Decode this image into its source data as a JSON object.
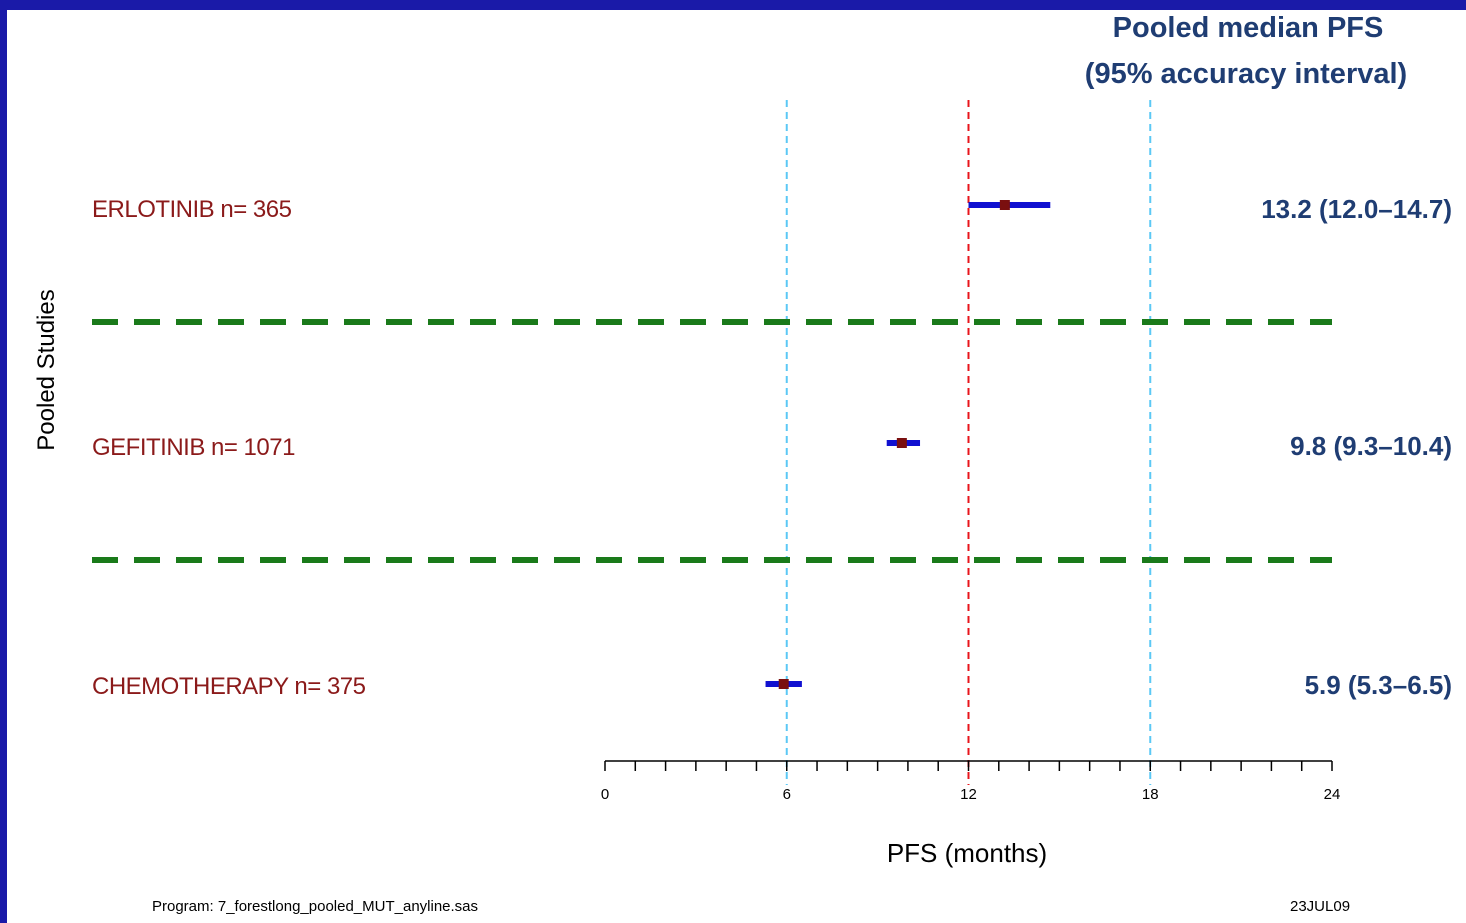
{
  "header": {
    "line1": "Pooled median PFS",
    "line2": "(95% accuracy interval)"
  },
  "chart_data": {
    "type": "forest",
    "ylabel": "Pooled Studies",
    "xlabel": "PFS (months)",
    "xlim": [
      0,
      24
    ],
    "xticks": [
      0,
      6,
      12,
      18,
      24
    ],
    "reference_lines": [
      {
        "x": 6,
        "style": "dashed",
        "color": "#5bc8f5"
      },
      {
        "x": 12,
        "style": "dashed",
        "color": "#e8141b"
      },
      {
        "x": 18,
        "style": "dashed",
        "color": "#5bc8f5"
      }
    ],
    "studies": [
      {
        "label": "ERLOTINIB n= 365",
        "median": 13.2,
        "lower": 12.0,
        "upper": 14.7,
        "ci_text": "13.2 (12.0–14.7)"
      },
      {
        "label": "GEFITINIB n= 1071",
        "median": 9.8,
        "lower": 9.3,
        "upper": 10.4,
        "ci_text": "9.8 (9.3–10.4)"
      },
      {
        "label": "CHEMOTHERAPY n= 375",
        "median": 5.9,
        "lower": 5.3,
        "upper": 6.5,
        "ci_text": "5.9 (5.3–6.5)"
      }
    ],
    "colors": {
      "ci_line": "#1010d0",
      "point": "#7a0f0f",
      "separator": "#1a7a1a",
      "label": "#8b1a1a",
      "ci_text": "#1f3d73"
    }
  },
  "footer": {
    "program": "Program: 7_forestlong_pooled_MUT_anyline.sas",
    "date": "23JUL09"
  }
}
